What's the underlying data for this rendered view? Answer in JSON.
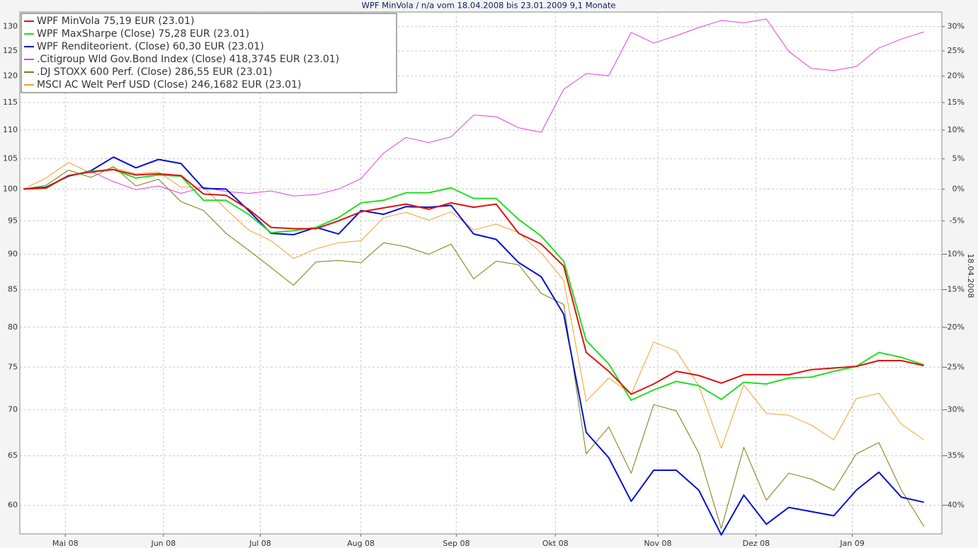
{
  "chart_data": {
    "type": "line",
    "title": "WPF MinVola / n/a vom 18.04.2008 bis 23.01.2009 9,1 Monate",
    "y2_label": "18.04.2008",
    "log": true,
    "grid": true,
    "legend": "top-left",
    "xlim": [
      -0.16,
      40.8
    ],
    "xticks": [
      {
        "value": 1.86,
        "label": "Mai 08"
      },
      {
        "value": 6.22,
        "label": "Jun 08"
      },
      {
        "value": 10.52,
        "label": "Jul 08"
      },
      {
        "value": 14.99,
        "label": "Aug 08"
      },
      {
        "value": 19.23,
        "label": "Sep 08"
      },
      {
        "value": 23.63,
        "label": "Okt 08"
      },
      {
        "value": 28.18,
        "label": "Nov 08"
      },
      {
        "value": 32.55,
        "label": "Dez 08"
      },
      {
        "value": 36.82,
        "label": "Jan 09"
      }
    ],
    "ylim": [
      57.3,
      133.1
    ],
    "yticks": [
      60,
      65,
      70,
      75,
      80,
      85,
      90,
      95,
      100,
      105,
      110,
      115,
      120,
      125,
      130
    ],
    "y2lim": [
      -42.7,
      33.1
    ],
    "y2ticks": [
      {
        "value": -40,
        "label": "-40%"
      },
      {
        "value": -35,
        "label": "-35%"
      },
      {
        "value": -30,
        "label": "-30%"
      },
      {
        "value": -25,
        "label": "-25%"
      },
      {
        "value": -20,
        "label": "-20%"
      },
      {
        "value": -15,
        "label": "-15%"
      },
      {
        "value": -10,
        "label": "-10%"
      },
      {
        "value": -5,
        "label": "-5%"
      },
      {
        "value": 0,
        "label": "0%"
      },
      {
        "value": 5,
        "label": "5%"
      },
      {
        "value": 10,
        "label": "10%"
      },
      {
        "value": 15,
        "label": "15%"
      },
      {
        "value": 20,
        "label": "20%"
      },
      {
        "value": 25,
        "label": "25%"
      },
      {
        "value": 30,
        "label": "30%"
      }
    ],
    "series": [
      {
        "name": "MSCI AC Welt Perf USD (Close) 246,1682 EUR (23.01)",
        "color": "#f0a030",
        "width": 1,
        "values": [
          100,
          101.8,
          104.4,
          102.6,
          103.5,
          102.5,
          102.8,
          100.3,
          100.3,
          96.8,
          93.6,
          92,
          89.4,
          90.8,
          91.7,
          92,
          95.5,
          96.3,
          95.1,
          96.4,
          93.6,
          94.5,
          93.2,
          90.2,
          86.3,
          71,
          73.7,
          71.8,
          78.1,
          77,
          72.8,
          65.8,
          72.9,
          69.6,
          69.4,
          68.3,
          66.7,
          71.3,
          71.9,
          68.4,
          66.7
        ]
      },
      {
        "name": ".DJ STOXX 600 Perf. (Close) 286,55 EUR (23.01)",
        "color": "#7a7a10",
        "width": 1,
        "values": [
          100,
          100.6,
          103.1,
          101.9,
          103.7,
          100.5,
          101.6,
          98,
          96.6,
          93.1,
          90.6,
          88.1,
          85.6,
          88.9,
          89.1,
          88.8,
          91.7,
          91.1,
          90,
          91.5,
          86.5,
          89,
          88.5,
          84.5,
          83,
          65.2,
          68.1,
          63.2,
          70.6,
          69.9,
          65.3,
          57.8,
          65.9,
          60.5,
          63.2,
          62.6,
          61.5,
          65.2,
          66.4,
          61.5,
          58
        ]
      },
      {
        "name": ".Citigroup Wld Gov.Bond Index (Close) 418,3745 EUR (23.01)",
        "color": "#e040e0",
        "width": 1,
        "values": [
          100,
          100.3,
          102.2,
          102.9,
          101.2,
          99.9,
          100.5,
          99.3,
          100.3,
          99.6,
          99.3,
          99.7,
          98.9,
          99.1,
          100,
          101.7,
          106,
          108.7,
          107.8,
          108.8,
          112.7,
          112.4,
          110.4,
          109.6,
          117.5,
          120.5,
          120.1,
          128.8,
          126.6,
          128.1,
          129.8,
          131.3,
          130.8,
          131.6,
          124.9,
          121.5,
          121.1,
          121.9,
          125.6,
          127.4,
          128.9
        ]
      },
      {
        "name": "WPF Renditeorient. (Close) 60,30 EUR (23.01)",
        "color": "#0010d0",
        "width": 2,
        "values": [
          100,
          100.3,
          102.1,
          103,
          105.3,
          103.5,
          104.9,
          104.2,
          100.1,
          100,
          96.6,
          93.1,
          92.9,
          94,
          93,
          96.6,
          96,
          97.2,
          97.1,
          97.4,
          93,
          92.2,
          88.8,
          86.8,
          81.7,
          67.5,
          64.8,
          60.4,
          63.5,
          63.5,
          61.5,
          57.2,
          61,
          58.2,
          59.8,
          59.4,
          59,
          61.5,
          63.3,
          60.8,
          60.3
        ]
      },
      {
        "name": "WPF MaxSharpe (Close) 75,28 EUR (23.01)",
        "color": "#20e020",
        "width": 2,
        "values": [
          100,
          100.1,
          102.2,
          102.9,
          103.2,
          101.8,
          102.3,
          102.1,
          98.2,
          98.2,
          96,
          93.2,
          93.5,
          94,
          95.5,
          97.8,
          98.2,
          99.4,
          99.4,
          100.2,
          98.5,
          98.5,
          95.2,
          92.7,
          89,
          78.3,
          75.4,
          71.1,
          72.3,
          73.3,
          72.8,
          71.2,
          73.2,
          73,
          73.7,
          73.8,
          74.5,
          75.1,
          76.8,
          76.2,
          75.28
        ]
      },
      {
        "name": "WPF MinVola 75,19 EUR (23.01)",
        "color": "#e01010",
        "width": 2,
        "values": [
          100,
          100.2,
          102.2,
          102.8,
          103.2,
          102.3,
          102.5,
          102.2,
          99.2,
          99,
          96.8,
          94,
          93.8,
          93.8,
          95,
          96.4,
          97,
          97.6,
          96.8,
          97.8,
          97.1,
          97.6,
          93.1,
          91.5,
          88.3,
          76.8,
          74.5,
          71.8,
          73,
          74.5,
          74,
          73.1,
          74.1,
          74.1,
          74.1,
          74.7,
          74.9,
          75.1,
          75.8,
          75.8,
          75.19
        ]
      }
    ]
  }
}
